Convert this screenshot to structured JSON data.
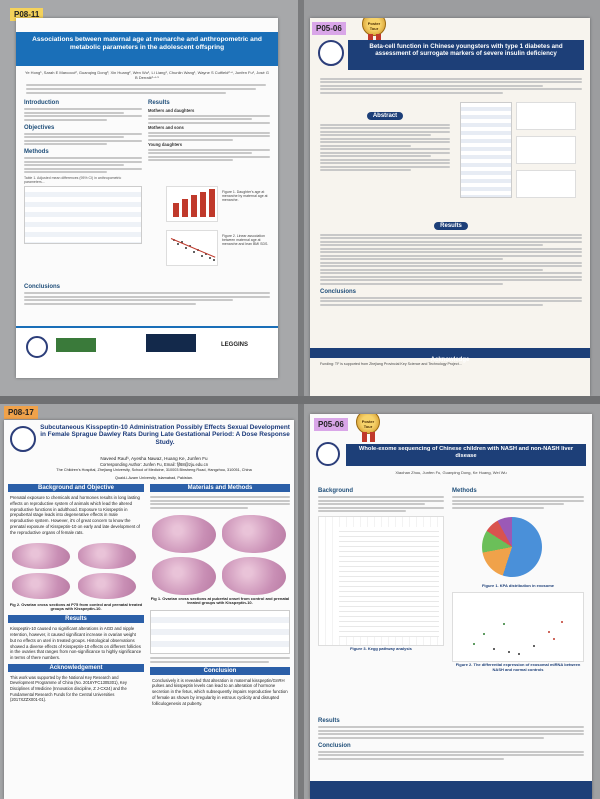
{
  "image_title": "",
  "posters": {
    "top_left": {
      "code": "P08-11",
      "title": "Associations between maternal age at menarche and anthropometric and metabolic parameters in the adolescent offspring",
      "authors": "Ye Hong¹, Sarah E Marcocci², Guanqing Dong³, Xin Huang², Wen Wu¹, Li Liang¹, Chunlin Wang¹, Wayne S Cutfield²·⁴, Junfen Fu¹, José G B Derraik²·⁴·⁵",
      "sections": [
        "Introduction",
        "Objectives",
        "Methods",
        "Results",
        "Conclusions"
      ],
      "results_sub": [
        "Mothers and daughters",
        "Mothers and sons",
        "Young daughters"
      ],
      "table_caption": "Table 1. Adjusted mean differences (95% CI) in anthropometric parameters...",
      "fig_caption": "Figure 1. Daughter's age at menarche by maternal age at menarche.",
      "fig2_caption": "Figure 2. Linear association between maternal age at menarche and lean BMI SDS.",
      "footer_logo": "LEGGINS"
    },
    "top_right": {
      "code": "P05-06",
      "award": "Poster Tour",
      "title": "Beta-cell function in Chinese youngsters with type 1 diabetes and assessment of surrogate markers of severe insulin deficiency",
      "sections": [
        "Abstract",
        "Results",
        "Conclusions",
        "Acknowledge"
      ],
      "ack": "Funding: TF is supported from Zhejiang Provincial Key Science and Technology Project..."
    },
    "bottom_left": {
      "code": "P08-17",
      "title": "Subcutaneous Kisspeptin-10 Administration Possibly Effects Sexual Development in Female Sprague Dawley Rats During Late Gestational Period: A Dose Response Study.",
      "authors": "Naveed Rauf¹, Ayesha Nawaz, Huang Ke, Junfen Fu",
      "corresponding": "Corresponding Author: Junfen Fu, Email: fjf68@zju.edu.cn",
      "affiliation": "The Children's Hospital, Zhejiang University, School of Medicine, 310003 Binsheng Road, Hangzhou, 310051, China",
      "affiliation2": "Quaid-i-Azam University, Islamabad, Pakistan.",
      "sections": [
        "Background and Objective",
        "Materials and Methods",
        "Results",
        "Conclusion",
        "Acknowledgement"
      ],
      "bg_text": "Prenatal exposure to chemicals and hormones results in long lasting effects on reproductive system of animals which lead the altered reproductive functions in adulthood. Exposure to Kisspeptin in prepubertal stage leads into degenerative effects in male reproductive system. However, it's of great concern to know the prenatal exposure of Kisspeptin-10 on early and late development of the reproductive organs of female rats.",
      "fig2_caption": "Fig 2. Ovarian cross sections at P75 from control and prenatal treated groups with Kisspeptin-10.",
      "fig1_caption": "Fig 1. Ovarian cross sections at pubertal onset from control and prenatal treated groups with Kisspeptin-10.",
      "results_text": "Kisspeptin-10 caused no significant alterations in AGD and nipple retention, however, it caused significant increase in ovarian weight but no effects on uteri in treated groups. Histological observations showed a diverse effects of Kisspeptin-10 effects on different follicles in the ovaries that ranges from non-significance to highly significance in terms of there numbers.",
      "conclusion_text": "Conclusively it is revealed that alteration in maternal kisspeptin/GnRH pulses and kisspeptin levels can lead to an alteration of hormone secretion in the fetus, which subsequently impairs reproductive function of female as shown by irregularity in estrous cyclicity and disrupted folliculogenesis at puberty.",
      "ack_text": "This work was supported by the National Key Research and Development Programme of China (No. 2016YFC1305301), Key Disciplines of Medicine (Innovation discipline, Z J-CX24) and the Fundamental Research Funds for the Central Universities (2017XZZX001-01)."
    },
    "bottom_right": {
      "code": "P05-06",
      "award": "Poster Tour",
      "title": "Whole-exome sequencing of Chinese children with NASH and non-NASH liver disease",
      "authors": "Xiaohan Zhou, Junfen Fu, Guanping Dong, Ke Huang, Wei Wu",
      "sections": [
        "Background",
        "Methods",
        "Results",
        "Conclusion"
      ],
      "fig1_caption": "Figure 1. KPA distribution in exosome",
      "fig2_caption": "Figure 2. The differential expression of exosomal miRNA between NASH and normal controls",
      "fig3_caption": "Figure 3. Kegg pathway analysis"
    }
  }
}
